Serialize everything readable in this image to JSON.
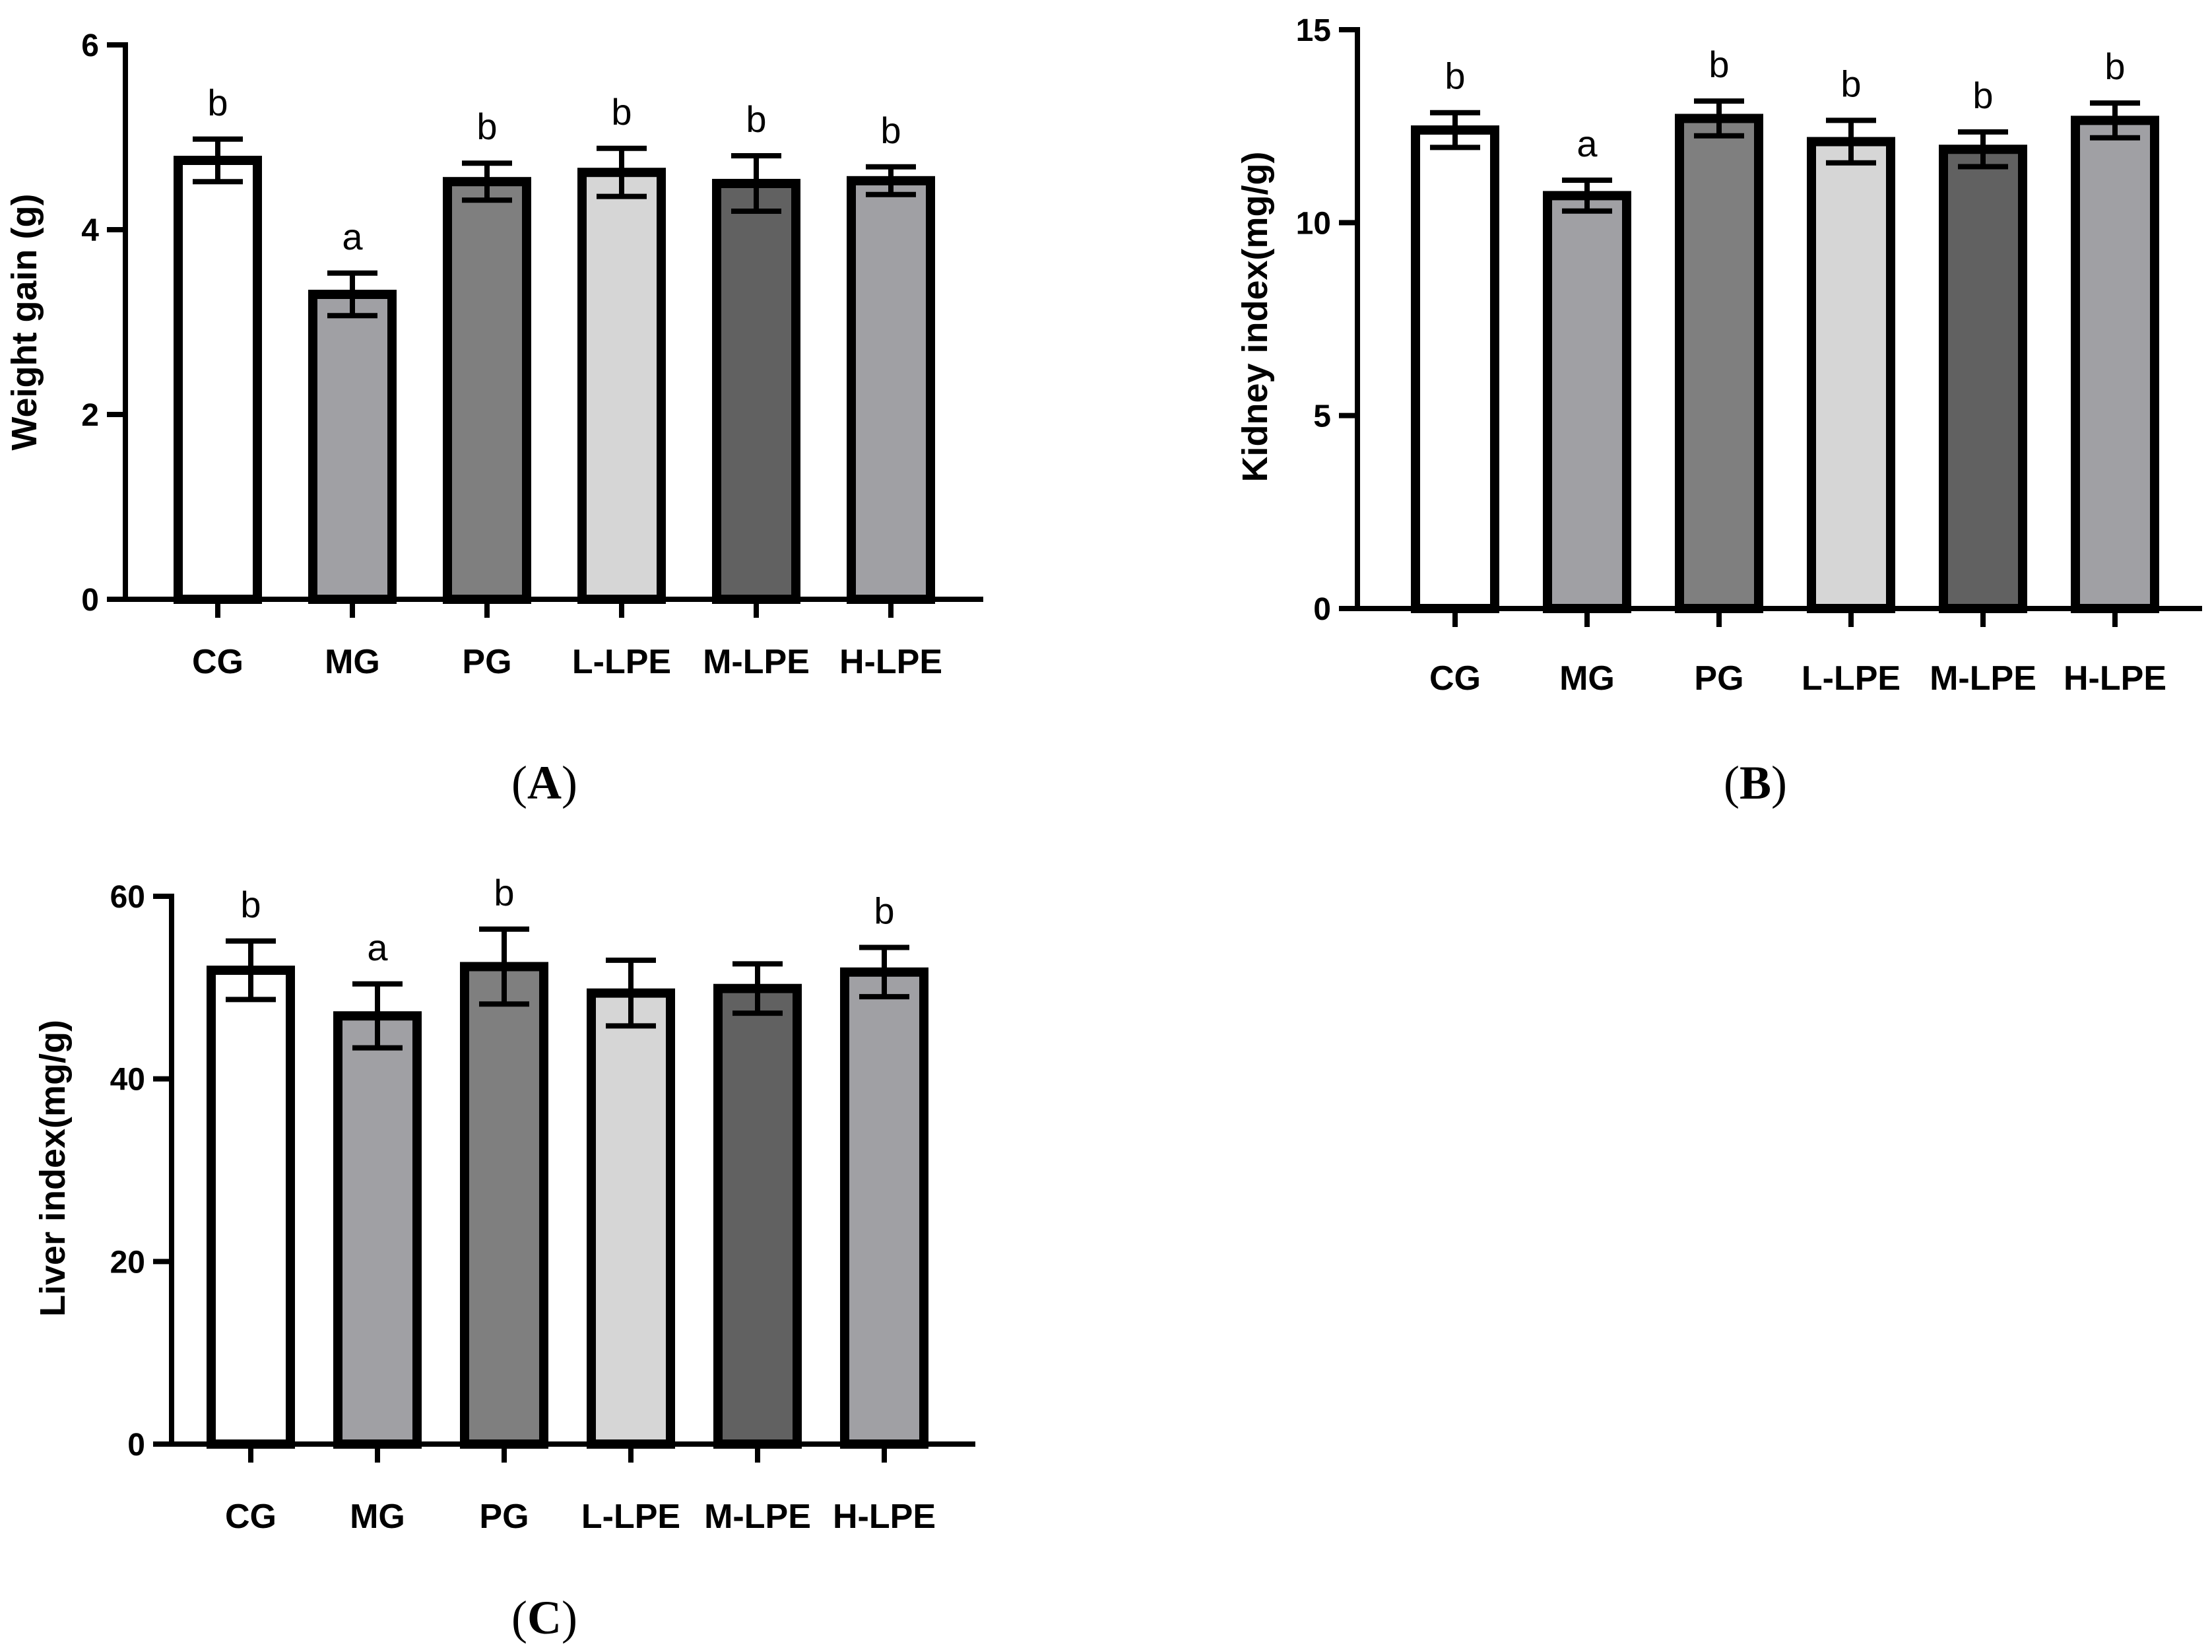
{
  "chart_data": [
    {
      "panel": "A",
      "type": "bar",
      "ylabel": "Weight gain (g)",
      "xlabel": "",
      "ylim": [
        0,
        6
      ],
      "yticks": [
        0,
        2,
        4,
        6
      ],
      "categories": [
        "CG",
        "MG",
        "PG",
        "L-LPE",
        "M-LPE",
        "H-LPE"
      ],
      "values": [
        4.75,
        3.3,
        4.52,
        4.62,
        4.5,
        4.53
      ],
      "errors": [
        0.23,
        0.23,
        0.2,
        0.26,
        0.3,
        0.15
      ],
      "significance": [
        "b",
        "a",
        "b",
        "b",
        "b",
        "b"
      ],
      "colors": [
        "#ffffff",
        "#a0a0a4",
        "#7f7f7f",
        "#d6d6d6",
        "#616161",
        "#a0a0a4"
      ]
    },
    {
      "panel": "B",
      "type": "bar",
      "ylabel": "Kidney index(mg/g)",
      "xlabel": "",
      "ylim": [
        0,
        15
      ],
      "yticks": [
        0,
        5,
        10,
        15
      ],
      "categories": [
        "CG",
        "MG",
        "PG",
        "L-LPE",
        "M-LPE",
        "H-LPE"
      ],
      "values": [
        12.4,
        10.7,
        12.7,
        12.1,
        11.9,
        12.65
      ],
      "errors": [
        0.45,
        0.4,
        0.45,
        0.55,
        0.45,
        0.45
      ],
      "significance": [
        "b",
        "a",
        "b",
        "b",
        "b",
        "b"
      ],
      "colors": [
        "#ffffff",
        "#a0a0a4",
        "#7f7f7f",
        "#d6d6d6",
        "#616161",
        "#a0a0a4"
      ]
    },
    {
      "panel": "C",
      "type": "bar",
      "ylabel": "Liver index(mg/g)",
      "xlabel": "",
      "ylim": [
        0,
        60
      ],
      "yticks": [
        0,
        20,
        40,
        60
      ],
      "categories": [
        "CG",
        "MG",
        "PG",
        "L-LPE",
        "M-LPE",
        "H-LPE"
      ],
      "values": [
        51.9,
        46.9,
        52.3,
        49.4,
        49.9,
        51.7
      ],
      "errors": [
        3.2,
        3.5,
        4.1,
        3.6,
        2.7,
        2.7
      ],
      "significance": [
        "b",
        "a",
        "b",
        "",
        "",
        "b"
      ],
      "colors": [
        "#ffffff",
        "#a0a0a4",
        "#7f7f7f",
        "#d6d6d6",
        "#616161",
        "#a0a0a4"
      ]
    }
  ]
}
